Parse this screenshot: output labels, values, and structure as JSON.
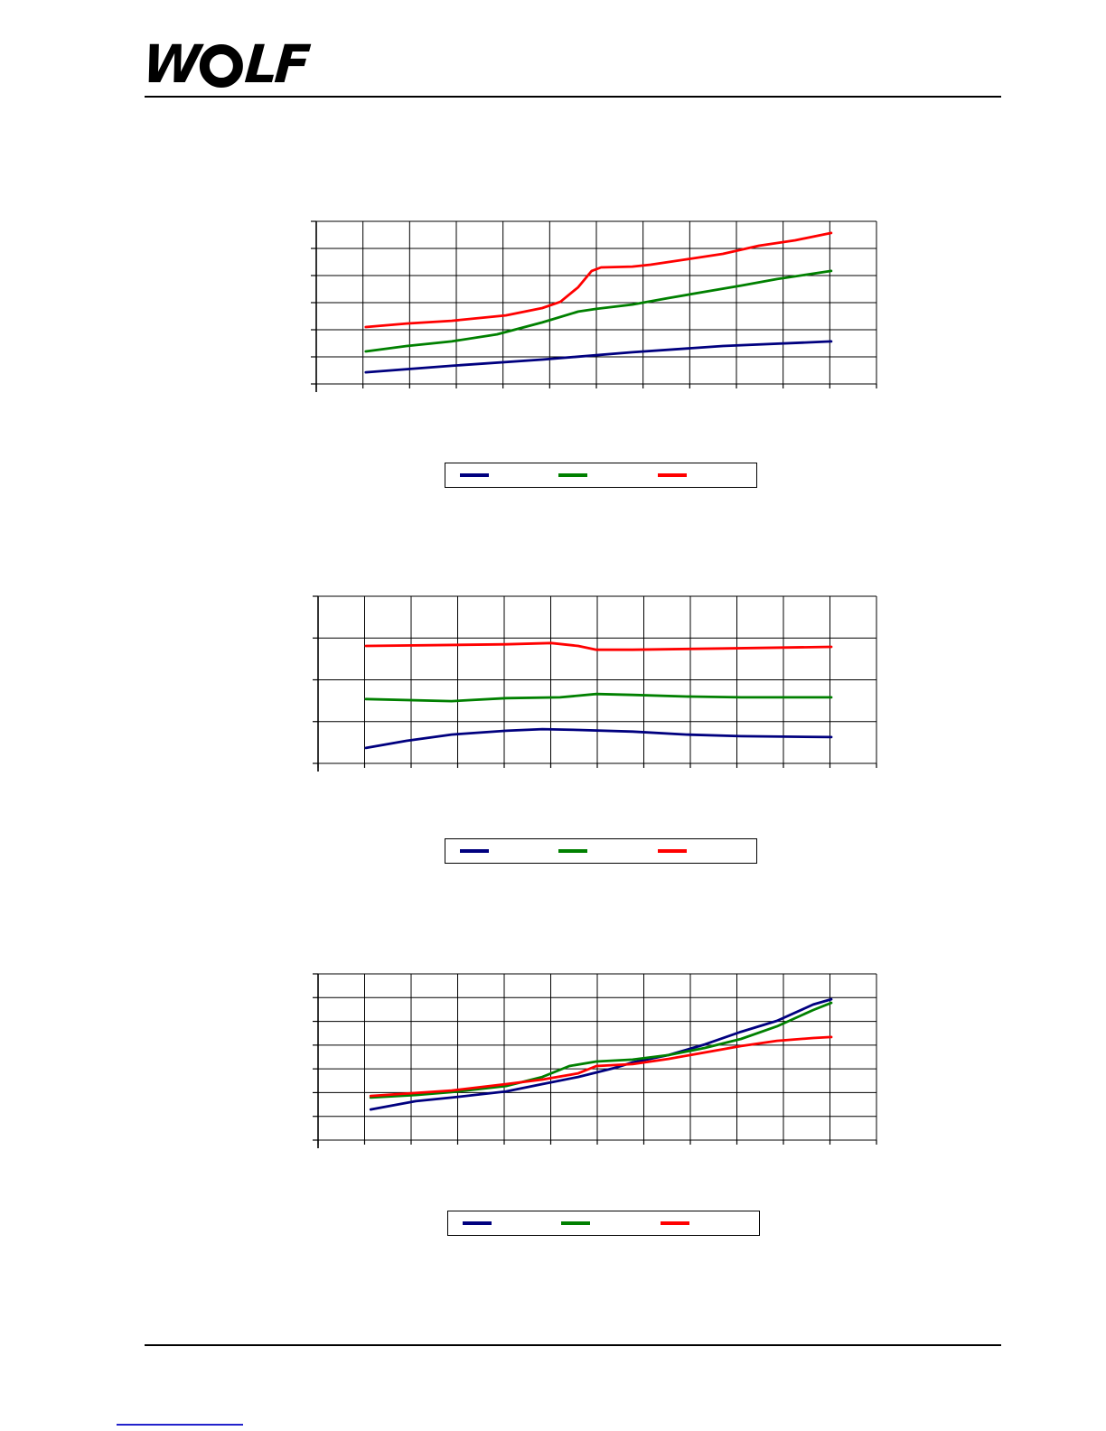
{
  "logo": {
    "w": "W",
    "lf": "LF",
    "alt": "WOLF"
  },
  "colors": {
    "series_blue": "#00007f",
    "series_green": "#008000",
    "series_red": "#ff0000",
    "grid": "#000000",
    "link_blue": "#2222cc"
  },
  "chart_data": [
    {
      "type": "line",
      "title": "",
      "xlabel": "",
      "ylabel": "",
      "grid": {
        "cols": 12,
        "rows": 6
      },
      "x_range": [
        0,
        12
      ],
      "y_range": [
        0,
        6
      ],
      "axis_tick_labels_visible": false,
      "legend_position": "below-chart-in-separate-box",
      "series": [
        {
          "name": "series-blue",
          "color": "#00007f",
          "points": [
            [
              1.06,
              0.43
            ],
            [
              2.9,
              0.67
            ],
            [
              4.84,
              0.9
            ],
            [
              6.77,
              1.17
            ],
            [
              8.71,
              1.4
            ],
            [
              11.03,
              1.57
            ]
          ]
        },
        {
          "name": "series-green",
          "color": "#008000",
          "points": [
            [
              1.06,
              1.2
            ],
            [
              1.94,
              1.4
            ],
            [
              2.9,
              1.57
            ],
            [
              3.87,
              1.83
            ],
            [
              4.84,
              2.27
            ],
            [
              5.61,
              2.67
            ],
            [
              6.0,
              2.77
            ],
            [
              6.77,
              2.93
            ],
            [
              7.55,
              3.17
            ],
            [
              8.32,
              3.4
            ],
            [
              9.1,
              3.63
            ],
            [
              9.87,
              3.87
            ],
            [
              11.03,
              4.17
            ]
          ]
        },
        {
          "name": "series-red",
          "color": "#ff0000",
          "points": [
            [
              1.06,
              2.1
            ],
            [
              1.94,
              2.23
            ],
            [
              2.9,
              2.33
            ],
            [
              4.06,
              2.53
            ],
            [
              4.84,
              2.8
            ],
            [
              5.23,
              3.03
            ],
            [
              5.61,
              3.57
            ],
            [
              5.9,
              4.17
            ],
            [
              6.1,
              4.3
            ],
            [
              6.77,
              4.33
            ],
            [
              7.16,
              4.4
            ],
            [
              7.94,
              4.6
            ],
            [
              8.71,
              4.8
            ],
            [
              9.48,
              5.1
            ],
            [
              10.26,
              5.3
            ],
            [
              11.03,
              5.57
            ]
          ]
        }
      ]
    },
    {
      "type": "line",
      "title": "",
      "xlabel": "",
      "ylabel": "",
      "grid": {
        "cols": 12,
        "rows": 4
      },
      "x_range": [
        0,
        12
      ],
      "y_range": [
        0,
        4
      ],
      "axis_tick_labels_visible": false,
      "legend_position": "below-chart-in-separate-box",
      "series": [
        {
          "name": "series-blue",
          "color": "#00007f",
          "points": [
            [
              1.03,
              0.37
            ],
            [
              1.9,
              0.54
            ],
            [
              2.87,
              0.69
            ],
            [
              4.04,
              0.78
            ],
            [
              4.82,
              0.82
            ],
            [
              5.59,
              0.8
            ],
            [
              6.76,
              0.76
            ],
            [
              7.92,
              0.69
            ],
            [
              9.09,
              0.65
            ],
            [
              11.03,
              0.63
            ]
          ]
        },
        {
          "name": "series-green",
          "color": "#008000",
          "points": [
            [
              1.03,
              1.54
            ],
            [
              2.87,
              1.49
            ],
            [
              4.04,
              1.56
            ],
            [
              5.2,
              1.58
            ],
            [
              5.98,
              1.66
            ],
            [
              6.76,
              1.64
            ],
            [
              7.92,
              1.6
            ],
            [
              9.09,
              1.58
            ],
            [
              11.03,
              1.58
            ]
          ]
        },
        {
          "name": "series-red",
          "color": "#ff0000",
          "points": [
            [
              1.03,
              2.81
            ],
            [
              4.04,
              2.85
            ],
            [
              5.01,
              2.88
            ],
            [
              5.59,
              2.81
            ],
            [
              5.98,
              2.72
            ],
            [
              6.76,
              2.72
            ],
            [
              8.7,
              2.75
            ],
            [
              11.03,
              2.79
            ]
          ]
        }
      ]
    },
    {
      "type": "line",
      "title": "",
      "xlabel": "",
      "ylabel": "",
      "grid": {
        "cols": 12,
        "rows": 7
      },
      "x_range": [
        0,
        12
      ],
      "y_range": [
        0,
        7
      ],
      "axis_tick_labels_visible": false,
      "legend_position": "below-chart-in-separate-box",
      "series": [
        {
          "name": "series-blue",
          "color": "#00007f",
          "points": [
            [
              1.13,
              1.29
            ],
            [
              2.1,
              1.64
            ],
            [
              2.87,
              1.79
            ],
            [
              4.04,
              2.05
            ],
            [
              4.82,
              2.36
            ],
            [
              5.59,
              2.66
            ],
            [
              6.37,
              3.04
            ],
            [
              6.76,
              3.27
            ],
            [
              7.53,
              3.58
            ],
            [
              8.31,
              4.03
            ],
            [
              9.09,
              4.56
            ],
            [
              9.86,
              5.02
            ],
            [
              10.64,
              5.71
            ],
            [
              11.03,
              5.93
            ]
          ]
        },
        {
          "name": "series-green",
          "color": "#008000",
          "points": [
            [
              1.13,
              1.79
            ],
            [
              2.1,
              1.9
            ],
            [
              2.87,
              2.02
            ],
            [
              4.04,
              2.28
            ],
            [
              4.82,
              2.66
            ],
            [
              5.4,
              3.12
            ],
            [
              5.98,
              3.31
            ],
            [
              6.76,
              3.39
            ],
            [
              7.53,
              3.58
            ],
            [
              8.31,
              3.88
            ],
            [
              9.09,
              4.26
            ],
            [
              9.86,
              4.79
            ],
            [
              10.64,
              5.48
            ],
            [
              11.03,
              5.78
            ]
          ]
        },
        {
          "name": "series-red",
          "color": "#ff0000",
          "points": [
            [
              1.13,
              1.86
            ],
            [
              2.87,
              2.09
            ],
            [
              4.04,
              2.36
            ],
            [
              4.82,
              2.55
            ],
            [
              5.59,
              2.81
            ],
            [
              5.98,
              3.12
            ],
            [
              6.76,
              3.2
            ],
            [
              7.53,
              3.42
            ],
            [
              8.31,
              3.69
            ],
            [
              9.09,
              3.96
            ],
            [
              9.86,
              4.18
            ],
            [
              10.64,
              4.3
            ],
            [
              11.03,
              4.34
            ]
          ]
        }
      ]
    }
  ]
}
